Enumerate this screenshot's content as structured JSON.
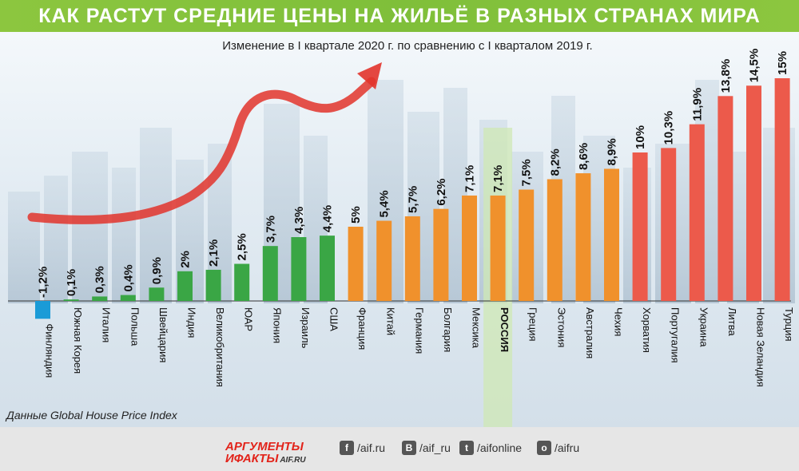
{
  "header": {
    "title": "КАК РАСТУТ СРЕДНИЕ ЦЕНЫ НА ЖИЛЬЁ В РАЗНЫХ СТРАНАХ МИРА",
    "subtitle": "Изменение в I квартале 2020 г. по сравнению с I кварталом 2019 г."
  },
  "source": "Данные  Global House Price Index",
  "chart_data": {
    "type": "bar",
    "title": "КАК РАСТУТ СРЕДНИЕ ЦЕНЫ НА ЖИЛЬЁ В РАЗНЫХ СТРАНАХ МИРА",
    "subtitle": "Изменение в I квартале 2020 г. по сравнению с I кварталом 2019 г.",
    "xlabel": "",
    "ylabel": "",
    "ylim": [
      -1.2,
      15
    ],
    "grid": false,
    "categories": [
      "Финляндия",
      "Южная Корея",
      "Италия",
      "Польша",
      "Швейцария",
      "Индия",
      "Великобритания",
      "ЮАР",
      "Япония",
      "Израиль",
      "США",
      "Франция",
      "Китай",
      "Германия",
      "Болгария",
      "Мексика",
      "РОССИЯ",
      "Греция",
      "Эстония",
      "Австралия",
      "Чехия",
      "Хорватия",
      "Португалия",
      "Украина",
      "Литва",
      "Новая Зеландия",
      "Турция"
    ],
    "values": [
      -1.2,
      0.1,
      0.3,
      0.4,
      0.9,
      2,
      2.1,
      2.5,
      3.7,
      4.3,
      4.4,
      5,
      5.4,
      5.7,
      6.2,
      7.1,
      7.1,
      7.5,
      8.2,
      8.6,
      8.9,
      10,
      10.3,
      11.9,
      13.8,
      14.5,
      15
    ],
    "value_labels": [
      "-1,2%",
      "0,1%",
      "0,3%",
      "0,4%",
      "0,9%",
      "2%",
      "2,1%",
      "2,5%",
      "3,7%",
      "4,3%",
      "4,4%",
      "5%",
      "5,4%",
      "5,7%",
      "6,2%",
      "7,1%",
      "7,1%",
      "7,5%",
      "8,2%",
      "8,6%",
      "8,9%",
      "10%",
      "10,3%",
      "11,9%",
      "13,8%",
      "14,5%",
      "15%"
    ],
    "highlight_category": "РОССИЯ",
    "colors": {
      "negative": "#1a9bd7",
      "green": "#3aa645",
      "orange": "#f0912c",
      "red": "#ec5a4b",
      "highlight_band": "#cfe8b4",
      "arrow": "#e2342b"
    }
  },
  "footer": {
    "logo_top": "АРГУМЕНТЫ",
    "logo_bottom": "ИФАКТЫ",
    "logo_domain": "AIF.RU",
    "social": [
      {
        "icon": "facebook-icon",
        "glyph": "f",
        "handle": "/aif.ru"
      },
      {
        "icon": "vk-icon",
        "glyph": "B",
        "handle": "/aif_ru"
      },
      {
        "icon": "twitter-icon",
        "glyph": "t",
        "handle": "/aifonline"
      },
      {
        "icon": "odnoklassniki-icon",
        "glyph": "o",
        "handle": "/aifru"
      }
    ]
  }
}
